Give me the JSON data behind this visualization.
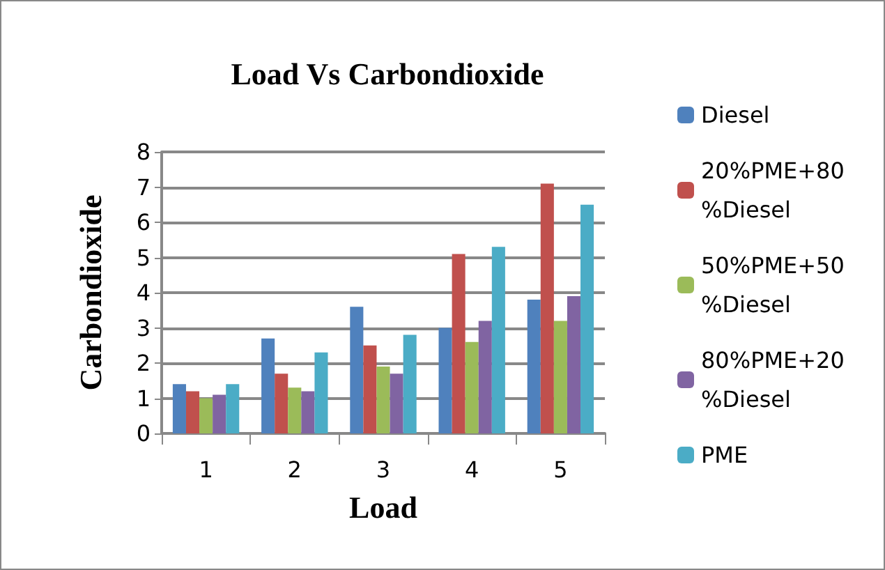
{
  "chart_data": {
    "type": "bar",
    "title": "Load Vs Carbondioxide",
    "xlabel": "Load",
    "ylabel": "Carbondioxide",
    "categories": [
      "1",
      "2",
      "3",
      "4",
      "5"
    ],
    "series": [
      {
        "name": "Diesel",
        "color": "#4f81bd",
        "values": [
          1.4,
          2.7,
          3.6,
          3.0,
          3.8
        ]
      },
      {
        "name": "20%PME+80%Diesel",
        "color": "#c0504d",
        "values": [
          1.2,
          1.7,
          2.5,
          5.1,
          7.1
        ]
      },
      {
        "name": "50%PME+50%Diesel",
        "color": "#9bbb59",
        "values": [
          1.0,
          1.3,
          1.9,
          2.6,
          3.2
        ]
      },
      {
        "name": "80%PME+20%Diesel",
        "color": "#8064a2",
        "values": [
          1.1,
          1.2,
          1.7,
          3.2,
          3.9
        ]
      },
      {
        "name": "PME",
        "color": "#4bacc6",
        "values": [
          1.4,
          2.3,
          2.8,
          5.3,
          6.5
        ]
      }
    ],
    "ylim": [
      0,
      8
    ],
    "yticks": [
      0,
      1,
      2,
      3,
      4,
      5,
      6,
      7,
      8
    ],
    "grid": "y",
    "legend": "right"
  }
}
